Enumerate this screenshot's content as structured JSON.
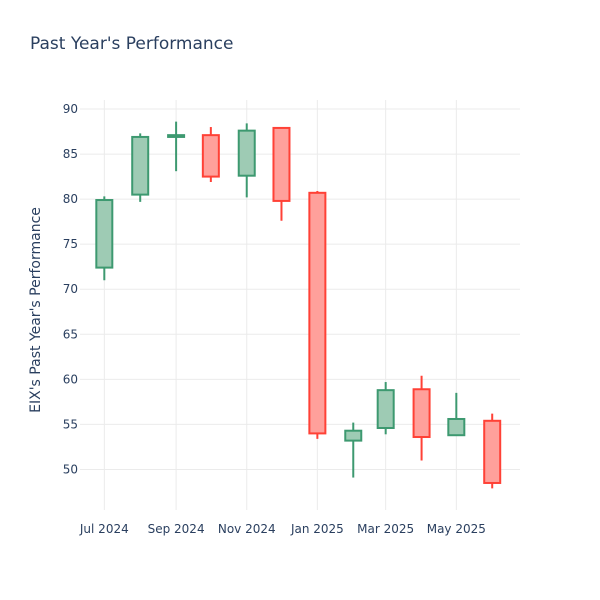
{
  "chart_data": {
    "type": "candlestick",
    "title": "Past Year's Performance",
    "xlabel": "",
    "ylabel": "EIX's Past Year's Performance",
    "ylim": [
      45.5,
      91
    ],
    "yticks": [
      50,
      55,
      60,
      65,
      70,
      75,
      80,
      85,
      90
    ],
    "xlim": [
      "2024-06-10",
      "2025-06-25"
    ],
    "xticks": [
      {
        "date": "2024-07-01",
        "label": "Jul 2024"
      },
      {
        "date": "2024-09-01",
        "label": "Sep 2024"
      },
      {
        "date": "2024-11-01",
        "label": "Nov 2024"
      },
      {
        "date": "2025-01-01",
        "label": "Jan 2025"
      },
      {
        "date": "2025-03-01",
        "label": "Mar 2025"
      },
      {
        "date": "2025-05-01",
        "label": "May 2025"
      }
    ],
    "grid": true,
    "colors": {
      "increasing": "#3d9970",
      "decreasing": "#ff4136",
      "increasing_fill": "#9ecbb4",
      "decreasing_fill": "#ffa09b",
      "grid": "#ebebeb",
      "text": "#2a3f5f"
    },
    "candles": [
      {
        "date": "2024-07-01",
        "open": 72.4,
        "high": 80.3,
        "low": 71.0,
        "close": 79.9
      },
      {
        "date": "2024-08-01",
        "open": 80.5,
        "high": 87.3,
        "low": 79.7,
        "close": 86.9
      },
      {
        "date": "2024-09-01",
        "open": 86.9,
        "high": 88.6,
        "low": 83.1,
        "close": 87.1
      },
      {
        "date": "2024-10-01",
        "open": 87.1,
        "high": 88.0,
        "low": 81.9,
        "close": 82.5
      },
      {
        "date": "2024-11-01",
        "open": 82.6,
        "high": 88.4,
        "low": 80.2,
        "close": 87.6
      },
      {
        "date": "2024-12-01",
        "open": 87.9,
        "high": 87.9,
        "low": 77.6,
        "close": 79.8
      },
      {
        "date": "2025-01-01",
        "open": 80.7,
        "high": 80.9,
        "low": 53.4,
        "close": 54.0
      },
      {
        "date": "2025-02-01",
        "open": 53.2,
        "high": 55.2,
        "low": 49.1,
        "close": 54.3
      },
      {
        "date": "2025-03-01",
        "open": 54.6,
        "high": 59.7,
        "low": 53.9,
        "close": 58.8
      },
      {
        "date": "2025-04-01",
        "open": 58.9,
        "high": 60.4,
        "low": 51.0,
        "close": 53.6
      },
      {
        "date": "2025-05-01",
        "open": 53.8,
        "high": 58.5,
        "low": 53.8,
        "close": 55.6
      },
      {
        "date": "2025-06-01",
        "open": 55.4,
        "high": 56.2,
        "low": 47.9,
        "close": 48.5
      }
    ]
  }
}
